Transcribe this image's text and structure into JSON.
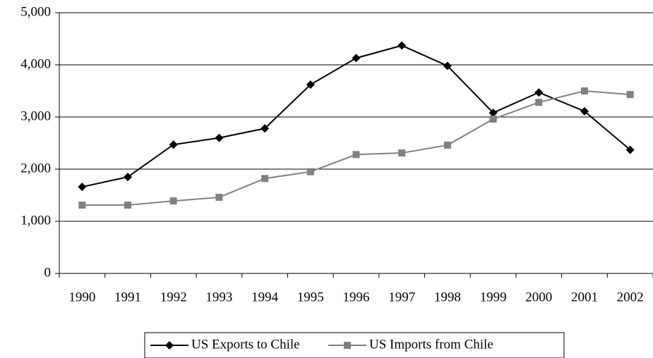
{
  "chart_data": {
    "type": "line",
    "categories": [
      "1990",
      "1991",
      "1992",
      "1993",
      "1994",
      "1995",
      "1996",
      "1997",
      "1998",
      "1999",
      "2000",
      "2001",
      "2002"
    ],
    "series": [
      {
        "name": "US Exports to Chile",
        "color": "#000000",
        "marker": "diamond",
        "values": [
          1660,
          1850,
          2470,
          2600,
          2780,
          3620,
          4130,
          4370,
          3980,
          3080,
          3470,
          3110,
          2370
        ]
      },
      {
        "name": "US Imports from Chile",
        "color": "#808080",
        "marker": "square",
        "values": [
          1310,
          1310,
          1390,
          1460,
          1820,
          1950,
          2280,
          2310,
          2460,
          2960,
          3280,
          3500,
          3430
        ]
      }
    ],
    "ylim": [
      0,
      5000
    ],
    "yticks": [
      0,
      {
        "value": 1000,
        "label": "1,000"
      },
      {
        "value": 2000,
        "label": "2,000"
      },
      {
        "value": 3000,
        "label": "3,000"
      },
      {
        "value": 4000,
        "label": "4,000"
      },
      {
        "value": 5000,
        "label": "5,000"
      }
    ],
    "grid": true,
    "legend": "bottom"
  }
}
